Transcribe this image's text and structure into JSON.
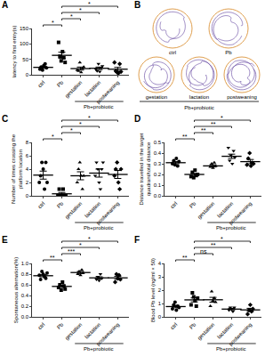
{
  "swim_paths": {
    "panel": "B",
    "labels": [
      "ctrl",
      "Pb",
      "gestation",
      "lactation",
      "postweaning"
    ],
    "group_label": "Pb+probiotic"
  },
  "chart_data": [
    {
      "panel": "A",
      "type": "dot",
      "y_label": [
        "latency to first entry(s)"
      ],
      "categories": [
        "ctrl",
        "Pb",
        "gestation",
        "lactation",
        "postweaning"
      ],
      "group_label": "Pb+probiotic",
      "markers": [
        "circle",
        "square",
        "triangle-up",
        "triangle-down",
        "diamond"
      ],
      "color": "#000000",
      "points": [
        [
          18,
          25,
          15,
          30,
          35,
          22
        ],
        [
          105,
          60,
          45,
          75,
          55,
          40
        ],
        [
          15,
          12,
          40,
          8,
          20,
          25
        ],
        [
          18,
          12,
          35,
          10,
          22,
          28
        ],
        [
          40,
          12,
          8,
          5,
          35,
          10
        ]
      ],
      "means": [
        24,
        63,
        20,
        21,
        18
      ],
      "errors": [
        3,
        10,
        5,
        4,
        6
      ],
      "ylim": [
        0,
        150
      ],
      "yticks": [
        0,
        50,
        100,
        150
      ],
      "comparisons": [
        {
          "pair": [
            0,
            1
          ],
          "label": "*"
        },
        {
          "pair": [
            1,
            2
          ],
          "label": "*"
        },
        {
          "pair": [
            1,
            3
          ],
          "label": "*"
        },
        {
          "pair": [
            1,
            4
          ],
          "label": "*"
        }
      ]
    },
    {
      "panel": "C",
      "type": "dot",
      "y_label": [
        "Number of times crossing the",
        "platform location"
      ],
      "categories": [
        "ctrl",
        "Pb",
        "gestation",
        "lactation",
        "postweaning"
      ],
      "group_label": "Pb+probiotic",
      "markers": [
        "circle",
        "square",
        "triangle-up",
        "triangle-down",
        "diamond"
      ],
      "color": "#000000",
      "points": [
        [
          2,
          3,
          5,
          4,
          1,
          5,
          2
        ],
        [
          0,
          1,
          0,
          0,
          1,
          0,
          0
        ],
        [
          2,
          4,
          5,
          3,
          1,
          3
        ],
        [
          3,
          5,
          4,
          2,
          1,
          4,
          5
        ],
        [
          3,
          4,
          5,
          2,
          1,
          4
        ]
      ],
      "means": [
        3.1,
        0.3,
        3.0,
        3.4,
        3.2
      ],
      "errors": [
        0.6,
        0.2,
        0.6,
        0.6,
        0.6
      ],
      "ylim": [
        0,
        8
      ],
      "yticks": [
        0,
        2,
        4,
        6,
        8
      ],
      "comparisons": [
        {
          "pair": [
            0,
            1
          ],
          "label": "*"
        },
        {
          "pair": [
            1,
            2
          ],
          "label": "*"
        },
        {
          "pair": [
            1,
            3
          ],
          "label": "*"
        },
        {
          "pair": [
            1,
            4
          ],
          "label": "*"
        }
      ]
    },
    {
      "panel": "D",
      "type": "dot",
      "y_label": [
        "Distance travelled in the target",
        "quadrant/total distance"
      ],
      "categories": [
        "ctrl",
        "Pb",
        "gestation",
        "lactation",
        "postweaning"
      ],
      "group_label": "Pb+probiotic",
      "markers": [
        "circle",
        "square",
        "triangle-up",
        "triangle-down",
        "diamond"
      ],
      "color": "#000000",
      "points": [
        [
          0.3,
          0.33,
          0.29,
          0.35,
          0.28,
          0.32
        ],
        [
          0.18,
          0.22,
          0.17,
          0.24,
          0.19,
          0.2
        ],
        [
          0.27,
          0.3,
          0.26,
          0.31,
          0.28
        ],
        [
          0.45,
          0.33,
          0.38,
          0.3,
          0.42,
          0.36
        ],
        [
          0.29,
          0.35,
          0.4,
          0.28,
          0.31,
          0.3
        ]
      ],
      "means": [
        0.31,
        0.2,
        0.28,
        0.37,
        0.32
      ],
      "errors": [
        0.01,
        0.01,
        0.01,
        0.02,
        0.02
      ],
      "ylim": [
        0,
        0.5
      ],
      "yticks": [
        {
          "value": 0,
          "label": "0.0"
        },
        0.1,
        0.2,
        0.3,
        0.4,
        0.5
      ],
      "comparisons": [
        {
          "pair": [
            0,
            1
          ],
          "label": "**"
        },
        {
          "pair": [
            1,
            2
          ],
          "label": "**"
        },
        {
          "pair": [
            1,
            3
          ],
          "label": "**"
        },
        {
          "pair": [
            1,
            4
          ],
          "label": "*"
        }
      ]
    },
    {
      "panel": "E",
      "type": "dot",
      "y_label": [
        "Spontaneous alternation(%)"
      ],
      "categories": [
        "ctrl",
        "Pb",
        "gestation",
        "lactation",
        "postweaning"
      ],
      "group_label": "Pb+probiotic",
      "markers": [
        "circle",
        "square",
        "triangle-up",
        "triangle-down",
        "diamond"
      ],
      "color": "#000000",
      "points": [
        [
          0.78,
          0.7,
          0.85,
          0.8,
          0.75,
          0.72,
          0.82
        ],
        [
          0.55,
          0.6,
          0.5,
          0.65,
          0.58,
          0.52
        ],
        [
          0.8,
          0.85,
          0.78,
          0.88,
          0.82
        ],
        [
          0.7,
          0.75,
          0.68,
          0.8,
          0.72
        ],
        [
          0.65,
          0.8,
          0.72,
          0.78,
          0.7
        ]
      ],
      "means": [
        0.77,
        0.57,
        0.83,
        0.73,
        0.73
      ],
      "errors": [
        0.02,
        0.02,
        0.02,
        0.02,
        0.03
      ],
      "ylim": [
        0,
        1.0
      ],
      "yticks": [
        {
          "value": 0,
          "label": "0.0"
        },
        0.2,
        0.4,
        0.6,
        0.8,
        {
          "value": 1,
          "label": "1.0"
        }
      ],
      "comparisons": [
        {
          "pair": [
            0,
            1
          ],
          "label": "**"
        },
        {
          "pair": [
            1,
            2
          ],
          "label": "***"
        },
        {
          "pair": [
            1,
            3
          ],
          "label": "*"
        },
        {
          "pair": [
            1,
            4
          ],
          "label": "*"
        }
      ]
    },
    {
      "panel": "F",
      "type": "dot",
      "y_label": [
        "Blood Pb level (ng/ml × 50)"
      ],
      "categories": [
        "ctrl",
        "Pb",
        "gestation",
        "lactation",
        "postweaning"
      ],
      "group_label": "Pb+probiotic",
      "markers": [
        "circle",
        "square",
        "triangle-up",
        "triangle-down",
        "diamond"
      ],
      "color": "#000000",
      "points": [
        [
          0.6,
          0.9,
          1.1,
          0.5,
          0.8,
          0.7
        ],
        [
          0.9,
          1.8,
          1.5,
          1.2,
          0.8,
          1.4
        ],
        [
          0.8,
          1.9,
          1.2,
          1.4,
          1.1
        ],
        [
          0.5,
          0.7,
          0.6,
          0.4,
          0.7
        ],
        [
          0.2,
          0.5,
          0.9,
          0.4,
          0.6
        ]
      ],
      "means": [
        0.77,
        1.27,
        1.28,
        0.58,
        0.52
      ],
      "errors": [
        0.09,
        0.15,
        0.18,
        0.06,
        0.12
      ],
      "ylim": [
        0,
        4
      ],
      "yticks": [
        0,
        1,
        2,
        3,
        4
      ],
      "comparisons": [
        {
          "pair": [
            0,
            1
          ],
          "label": "**"
        },
        {
          "pair": [
            1,
            2
          ],
          "label": "ns"
        },
        {
          "pair": [
            1,
            3
          ],
          "label": "**"
        },
        {
          "pair": [
            1,
            4
          ],
          "label": "*"
        }
      ]
    }
  ]
}
